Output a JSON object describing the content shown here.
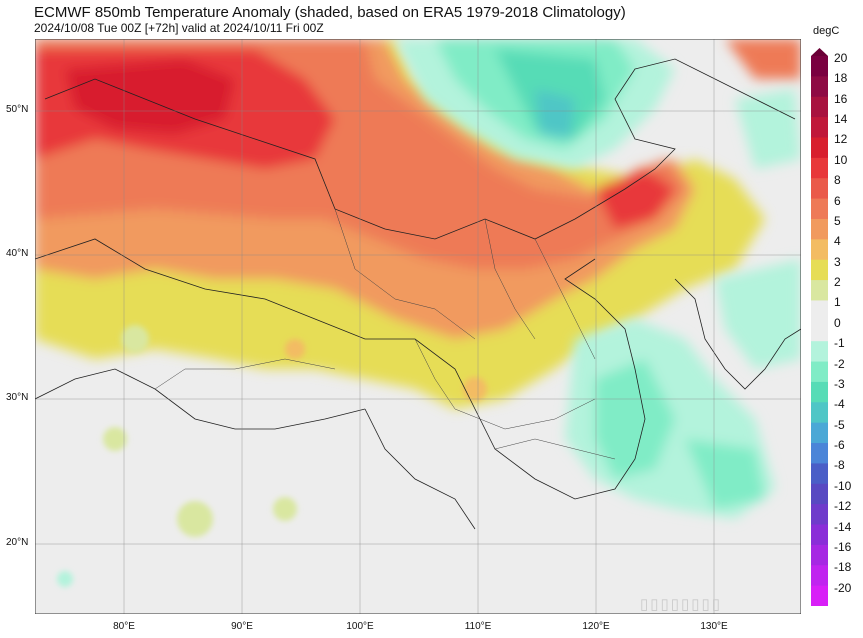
{
  "title": "ECMWF 850mb Temperature Anomaly (shaded, based on ERA5 1979-2018 Climatology)",
  "subtitle": "2024/10/08 Tue 00Z [+72h] valid at 2024/10/11 Fri 00Z",
  "lat_labels": [
    "50°N",
    "40°N",
    "30°N",
    "20°N"
  ],
  "lon_labels": [
    "80°E",
    "90°E",
    "100°E",
    "110°E",
    "120°E",
    "130°E"
  ],
  "colorbar": {
    "unit": "degC",
    "ticks": [
      "20",
      "18",
      "16",
      "14",
      "12",
      "10",
      "8",
      "6",
      "5",
      "4",
      "3",
      "2",
      "1",
      "0",
      "-1",
      "-2",
      "-3",
      "-4",
      "-5",
      "-6",
      "-8",
      "-10",
      "-12",
      "-14",
      "-16",
      "-18",
      "-20"
    ],
    "colors": [
      "#7a0040",
      "#8e0a44",
      "#a8123f",
      "#c0183a",
      "#d81f2e",
      "#e8383a",
      "#ea5a4a",
      "#ee7a57",
      "#f19a5e",
      "#f3bc63",
      "#e6dd56",
      "#d9e7a0",
      "#ededed",
      "#ededed",
      "#b3f3dc",
      "#80ecc6",
      "#57dcb6",
      "#4fc6c6",
      "#4ba8d6",
      "#4b85d8",
      "#4a5ec7",
      "#5849c2",
      "#6f3bcb",
      "#8a2ed8",
      "#a628e3",
      "#c024ef",
      "#d81ff7"
    ]
  },
  "watermark": "▯▯▯▯▯▯▯▯"
}
